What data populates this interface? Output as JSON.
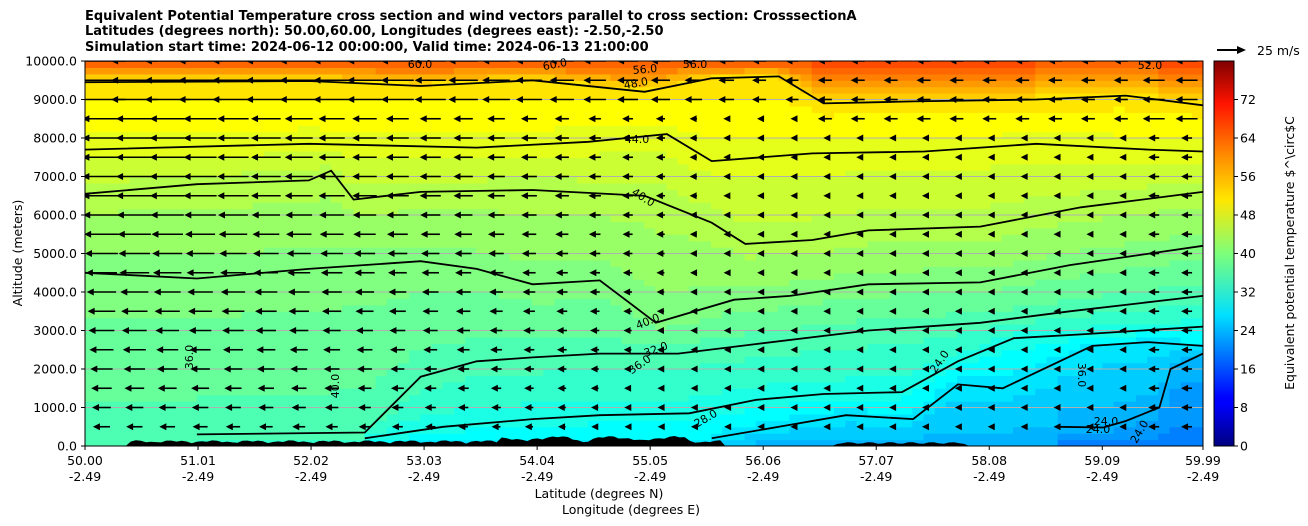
{
  "chart_data": {
    "type": "heatmap",
    "title_lines": [
      "Equivalent Potential Temperature cross section and wind vectors parallel to cross section: CrosssectionA",
      "Latitudes (degrees north): 50.00,60.00, Longitudes (degrees east): -2.50,-2.50",
      "Simulation start time: 2024-06-12 00:00:00, Valid time: 2024-06-13 21:00:00"
    ],
    "ylabel": "Altitude (meters)",
    "xlabel_lines": [
      "Latitude (degrees N)",
      "Longitude (degrees E)"
    ],
    "x_ticks_lat": [
      "50.00",
      "51.01",
      "52.02",
      "53.03",
      "54.04",
      "55.05",
      "56.06",
      "57.07",
      "58.08",
      "59.09",
      "59.99"
    ],
    "x_ticks_lon": [
      "-2.49",
      "-2.49",
      "-2.49",
      "-2.49",
      "-2.49",
      "-2.49",
      "-2.49",
      "-2.49",
      "-2.49",
      "-2.49",
      "-2.49"
    ],
    "x_range": [
      50.0,
      59.99
    ],
    "y_ticks": [
      "0.0",
      "1000.0",
      "2000.0",
      "3000.0",
      "4000.0",
      "5000.0",
      "6000.0",
      "7000.0",
      "8000.0",
      "9000.0",
      "10000.0"
    ],
    "ylim": [
      0,
      10000
    ],
    "grid": "horizontal",
    "colorbar": {
      "label": "Equivalent potential temperature $^\\circ$C",
      "ticks": [
        "0",
        "8",
        "16",
        "24",
        "32",
        "40",
        "48",
        "56",
        "64",
        "72"
      ],
      "range": [
        0,
        80
      ],
      "colormap": "jet"
    },
    "quiver_key": {
      "label": "25 m/s"
    },
    "contour_labels": [
      "60.0",
      "60.0",
      "56.0",
      "56.0",
      "52.0",
      "48.0",
      "44.0",
      "40.0",
      "40.0",
      "40.0",
      "36.0",
      "36.0",
      "36.0",
      "32.0",
      "28.0",
      "24.0",
      "24.0",
      "24.0",
      "24.0"
    ],
    "contours": [
      {
        "level": 52,
        "points": [
          [
            50.0,
            9450
          ],
          [
            52,
            9480
          ],
          [
            53,
            9350
          ],
          [
            54,
            9500
          ],
          [
            55.0,
            9200
          ],
          [
            55.6,
            9550
          ],
          [
            56.2,
            9600
          ],
          [
            56.6,
            8900
          ],
          [
            57.4,
            8950
          ],
          [
            58.5,
            9000
          ],
          [
            59.3,
            9100
          ],
          [
            59.99,
            8850
          ]
        ]
      },
      {
        "level": 48,
        "points": [
          [
            50.0,
            7700
          ],
          [
            52,
            7850
          ],
          [
            53.5,
            7750
          ],
          [
            54.5,
            7900
          ],
          [
            55.2,
            8100
          ],
          [
            55.6,
            7400
          ],
          [
            56.5,
            7600
          ],
          [
            57.5,
            7650
          ],
          [
            58.5,
            7850
          ],
          [
            59.5,
            7700
          ],
          [
            59.99,
            7650
          ]
        ]
      },
      {
        "level": 44,
        "points": [
          [
            50.0,
            6550
          ],
          [
            51,
            6800
          ],
          [
            52,
            6900
          ],
          [
            52.2,
            7150
          ],
          [
            52.4,
            6400
          ],
          [
            53,
            6600
          ],
          [
            54,
            6650
          ],
          [
            55.0,
            6500
          ],
          [
            55.6,
            5800
          ],
          [
            55.9,
            5250
          ],
          [
            56.5,
            5350
          ],
          [
            57.0,
            5600
          ],
          [
            58,
            5700
          ],
          [
            58.9,
            6200
          ],
          [
            59.99,
            6600
          ]
        ]
      },
      {
        "level": 40,
        "points": [
          [
            50.0,
            4500
          ],
          [
            51,
            4350
          ],
          [
            52,
            4600
          ],
          [
            53,
            4800
          ],
          [
            53.5,
            4600
          ],
          [
            54.0,
            4200
          ],
          [
            54.6,
            4300
          ],
          [
            55.1,
            3200
          ],
          [
            55.8,
            3800
          ],
          [
            56.3,
            3900
          ],
          [
            57,
            4200
          ],
          [
            58,
            4250
          ],
          [
            58.8,
            4700
          ],
          [
            59.99,
            5200
          ]
        ]
      },
      {
        "level": 36,
        "points": [
          [
            51.0,
            300
          ],
          [
            52.5,
            350
          ],
          [
            53.0,
            1800
          ],
          [
            53.5,
            2200
          ],
          [
            54.0,
            2300
          ],
          [
            54.6,
            2400
          ],
          [
            55.3,
            2400
          ],
          [
            56,
            2650
          ],
          [
            57,
            3000
          ],
          [
            58,
            3200
          ],
          [
            58.8,
            3500
          ],
          [
            59.99,
            3900
          ]
        ]
      },
      {
        "level": 32,
        "points": [
          [
            52.5,
            200
          ],
          [
            53.2,
            500
          ],
          [
            54.0,
            700
          ],
          [
            54.6,
            800
          ],
          [
            55.4,
            850
          ],
          [
            56.0,
            1200
          ],
          [
            56.6,
            1350
          ],
          [
            57.3,
            1400
          ],
          [
            57.8,
            2200
          ],
          [
            58.3,
            2800
          ],
          [
            58.9,
            2900
          ],
          [
            59.99,
            3100
          ]
        ]
      },
      {
        "level": 28,
        "points": [
          [
            55.6,
            200
          ],
          [
            56.2,
            500
          ],
          [
            56.8,
            800
          ],
          [
            57.4,
            700
          ],
          [
            57.8,
            1600
          ],
          [
            58.2,
            1500
          ],
          [
            59.0,
            2600
          ],
          [
            59.5,
            2700
          ],
          [
            59.99,
            2600
          ]
        ]
      },
      {
        "level": 24,
        "points": [
          [
            58.7,
            500
          ],
          [
            59.1,
            480
          ],
          [
            59.3,
            650
          ],
          [
            59.6,
            1000
          ],
          [
            59.7,
            2000
          ],
          [
            59.99,
            2400
          ]
        ]
      }
    ]
  }
}
